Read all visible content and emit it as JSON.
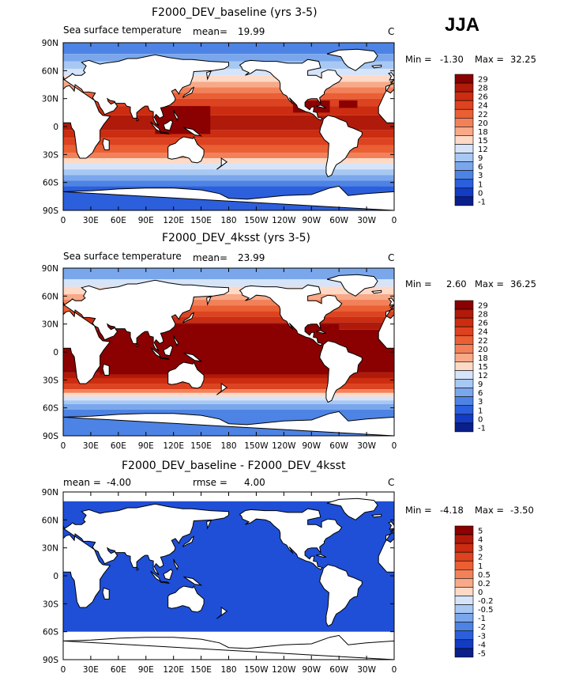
{
  "season": "JJA",
  "lon_labels": [
    "0",
    "30E",
    "60E",
    "90E",
    "120E",
    "150E",
    "180",
    "150W",
    "120W",
    "90W",
    "60W",
    "30W",
    "0"
  ],
  "lat_labels": [
    "90N",
    "60N",
    "30N",
    "0",
    "30S",
    "60S",
    "90S"
  ],
  "panels": [
    {
      "title": "F2000_DEV_baseline (yrs 3-5)",
      "left_label": "Sea surface temperature",
      "mean_label": "mean=",
      "mean_value": "19.99",
      "units": "C",
      "min_label": "Min =",
      "min_value": "-1.30",
      "max_label": "Max =",
      "max_value": "32.25",
      "scheme": "sst_base",
      "colorbar_labels": [
        "29",
        "28",
        "26",
        "24",
        "22",
        "20",
        "18",
        "15",
        "12",
        "9",
        "6",
        "3",
        "1",
        "0",
        "-1"
      ]
    },
    {
      "title": "F2000_DEV_4ksst (yrs 3-5)",
      "left_label": "Sea surface temperature",
      "mean_label": "mean=",
      "mean_value": "23.99",
      "units": "C",
      "min_label": "Min =",
      "min_value": "2.60",
      "max_label": "Max =",
      "max_value": "36.25",
      "scheme": "sst_warm",
      "colorbar_labels": [
        "29",
        "28",
        "26",
        "24",
        "22",
        "20",
        "18",
        "15",
        "12",
        "9",
        "6",
        "3",
        "1",
        "0",
        "-1"
      ]
    },
    {
      "title": "F2000_DEV_baseline - F2000_DEV_4ksst",
      "left_label": "mean =",
      "left_value": "-4.00",
      "rmse_label": "rmse =",
      "rmse_value": "4.00",
      "units": "C",
      "min_label": "Min =",
      "min_value": "-4.18",
      "max_label": "Max =",
      "max_value": "-3.50",
      "scheme": "diff",
      "colorbar_labels": [
        "5",
        "4",
        "3",
        "2",
        "1",
        "0.5",
        "0.2",
        "0",
        "-0.2",
        "-0.5",
        "-1",
        "-2",
        "-3",
        "-4",
        "-5"
      ]
    }
  ],
  "colors": {
    "colorbar": [
      "#8b0000",
      "#b01a0a",
      "#cc2c10",
      "#dd4320",
      "#ea5f33",
      "#f2815a",
      "#f8a987",
      "#fdd9c6",
      "#d6e4fa",
      "#a8c8f4",
      "#7aa7ec",
      "#4d83e4",
      "#2c5fdc",
      "#133bc4",
      "#0a1f8a"
    ],
    "diff_ocean": "#1f4fd6",
    "land": "#ffffff",
    "coast": "#000000"
  }
}
